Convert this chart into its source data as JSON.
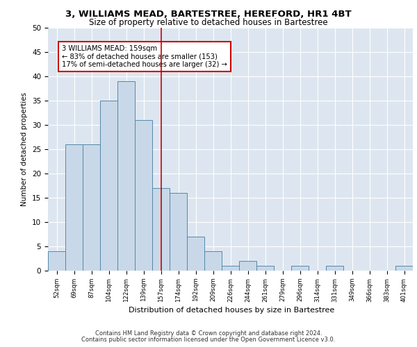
{
  "title1": "3, WILLIAMS MEAD, BARTESTREE, HEREFORD, HR1 4BT",
  "title2": "Size of property relative to detached houses in Bartestree",
  "xlabel": "Distribution of detached houses by size in Bartestree",
  "ylabel": "Number of detached properties",
  "categories": [
    "52sqm",
    "69sqm",
    "87sqm",
    "104sqm",
    "122sqm",
    "139sqm",
    "157sqm",
    "174sqm",
    "192sqm",
    "209sqm",
    "226sqm",
    "244sqm",
    "261sqm",
    "279sqm",
    "296sqm",
    "314sqm",
    "331sqm",
    "349sqm",
    "366sqm",
    "383sqm",
    "401sqm"
  ],
  "values": [
    4,
    26,
    26,
    35,
    39,
    31,
    17,
    16,
    7,
    4,
    1,
    2,
    1,
    0,
    1,
    0,
    1,
    0,
    0,
    0,
    1
  ],
  "bar_color": "#c8d8e8",
  "bar_edge_color": "#5588aa",
  "vline_x": 6,
  "vline_color": "#cc0000",
  "annotation_text": "3 WILLIAMS MEAD: 159sqm\n← 83% of detached houses are smaller (153)\n17% of semi-detached houses are larger (32) →",
  "annotation_box_color": "#ffffff",
  "annotation_box_edge": "#cc0000",
  "ylim": [
    0,
    50
  ],
  "yticks": [
    0,
    5,
    10,
    15,
    20,
    25,
    30,
    35,
    40,
    45,
    50
  ],
  "background_color": "#dde6f0",
  "grid_color": "#ffffff",
  "footer1": "Contains HM Land Registry data © Crown copyright and database right 2024.",
  "footer2": "Contains public sector information licensed under the Open Government Licence v3.0."
}
